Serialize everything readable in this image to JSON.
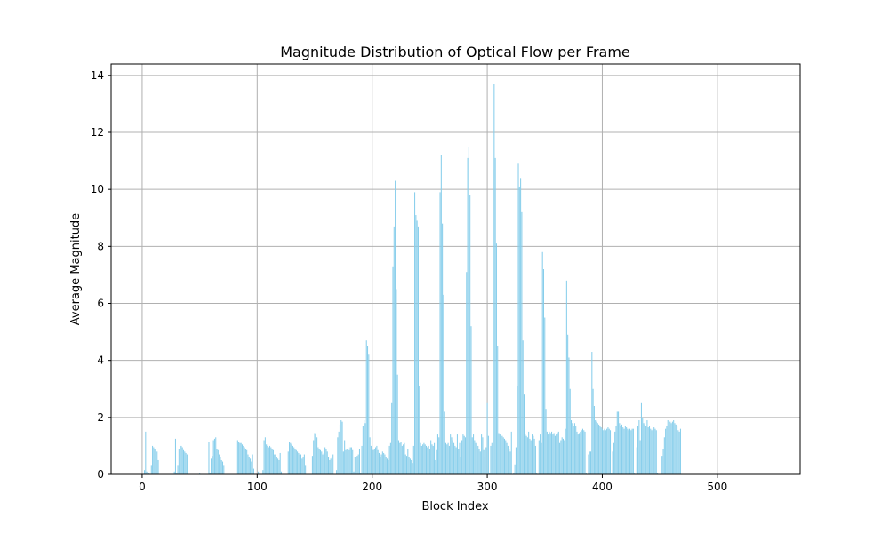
{
  "chart_data": {
    "type": "bar",
    "title": "Magnitude Distribution of Optical Flow per Frame",
    "xlabel": "Block Index",
    "ylabel": "Average Magnitude",
    "xlim": [
      -27,
      572
    ],
    "ylim": [
      0,
      14.4
    ],
    "xticks": [
      0,
      100,
      200,
      300,
      400,
      500
    ],
    "yticks": [
      0,
      2,
      4,
      6,
      8,
      10,
      12,
      14
    ],
    "grid": true,
    "legend": "none",
    "bar_color": "#87ceeb",
    "values": [
      0,
      0,
      0.15,
      1.5,
      0.1,
      0,
      0.05,
      0,
      0.3,
      1.0,
      0.95,
      0.9,
      0.85,
      0.8,
      0.5,
      0,
      0,
      0,
      0,
      0,
      0,
      0,
      0,
      0,
      0,
      0,
      0,
      0,
      0.1,
      1.25,
      0.05,
      0.3,
      0.9,
      1.0,
      1.0,
      0.95,
      0.85,
      0.8,
      0.75,
      0.7,
      0,
      0,
      0,
      0,
      0,
      0,
      0,
      0,
      0,
      0,
      0.05,
      0,
      0,
      0,
      0,
      0,
      0,
      0,
      1.15,
      0.05,
      0.55,
      0.65,
      1.2,
      1.25,
      1.3,
      0.9,
      0.85,
      0.7,
      0.6,
      0.5,
      0.45,
      0.3,
      0,
      0,
      0,
      0,
      0,
      0,
      0,
      0,
      0,
      0,
      0,
      1.2,
      1.15,
      1.1,
      1.1,
      1.05,
      1.0,
      0.95,
      0.9,
      0.85,
      0.7,
      0.6,
      0.55,
      0.45,
      0.7,
      0.2,
      0,
      0,
      0,
      0.1,
      0,
      0,
      0,
      0.15,
      1.2,
      1.3,
      1.05,
      1.0,
      0.95,
      1.0,
      0.95,
      0.9,
      0.85,
      0.7,
      0.7,
      0.6,
      0.55,
      0.5,
      0.75,
      0.1,
      0,
      0,
      0,
      0,
      0,
      0.8,
      1.15,
      1.1,
      1.05,
      1.0,
      0.95,
      0.9,
      0.85,
      0.8,
      0.75,
      0.7,
      0.7,
      0.55,
      0.6,
      0.7,
      0.3,
      0,
      0,
      0,
      0,
      0,
      0.65,
      1.2,
      1.45,
      1.4,
      1.3,
      0.95,
      0.9,
      0.85,
      0.8,
      0.7,
      0.75,
      0.95,
      0.9,
      0.8,
      0.6,
      0.5,
      0.55,
      0.6,
      0.7,
      0,
      0,
      0.15,
      1.3,
      1.5,
      1.75,
      1.9,
      1.85,
      0.8,
      1.2,
      0.85,
      0.9,
      0.95,
      0.85,
      0.95,
      0.95,
      0.85,
      0.1,
      0.6,
      0.6,
      0.65,
      0.7,
      0.9,
      0.05,
      1.0,
      1.7,
      1.9,
      1.8,
      4.7,
      4.5,
      4.2,
      1.3,
      1.0,
      0.9,
      0.85,
      0.9,
      0.95,
      1.0,
      0.85,
      0.75,
      0.6,
      0.7,
      0.8,
      0.75,
      0.7,
      0.6,
      0.55,
      0.5,
      1.0,
      1.1,
      2.5,
      7.3,
      8.7,
      10.3,
      6.5,
      3.5,
      1.2,
      1.1,
      1.15,
      1.0,
      1.05,
      1.1,
      0.7,
      0.65,
      0.9,
      0.6,
      0.55,
      0.5,
      0.4,
      1.0,
      9.9,
      9.1,
      8.9,
      8.7,
      3.1,
      1.1,
      1.0,
      1.05,
      1.1,
      1.05,
      1.0,
      0.95,
      1.0,
      0.9,
      1.2,
      1.05,
      1.0,
      1.1,
      0.5,
      0.85,
      1.4,
      1.3,
      9.9,
      11.2,
      8.8,
      6.3,
      2.2,
      1.1,
      1.05,
      1.1,
      1.0,
      1.4,
      1.3,
      1.2,
      1.1,
      1.0,
      0.95,
      1.4,
      0.9,
      1.1,
      0.6,
      1.2,
      1.4,
      1.35,
      1.3,
      7.1,
      11.1,
      11.5,
      9.8,
      5.2,
      1.3,
      1.4,
      1.2,
      1.1,
      1.05,
      1.0,
      0.9,
      0.8,
      1.4,
      1.3,
      0.85,
      0.6,
      0.95,
      2.5,
      1.35,
      0.05,
      1.0,
      1.1,
      10.7,
      13.7,
      11.1,
      8.1,
      4.5,
      1.45,
      1.4,
      1.35,
      1.35,
      1.3,
      1.25,
      1.2,
      1.1,
      1.0,
      0.9,
      0.8,
      1.5,
      0,
      0.05,
      0.35,
      0.95,
      3.1,
      10.9,
      10.1,
      10.4,
      9.2,
      4.7,
      2.8,
      1.4,
      1.35,
      1.3,
      1.5,
      1.25,
      1.2,
      1.4,
      1.35,
      1.25,
      1.0,
      0.05,
      0,
      1.2,
      1.4,
      1.1,
      7.8,
      7.2,
      5.5,
      2.3,
      1.5,
      1.4,
      1.5,
      1.45,
      1.5,
      1.4,
      1.45,
      1.35,
      1.4,
      1.45,
      1.5,
      1.1,
      1.2,
      1.3,
      1.25,
      1.2,
      1.6,
      6.8,
      4.9,
      4.1,
      3.0,
      1.9,
      1.8,
      1.7,
      1.8,
      1.7,
      1.5,
      1.4,
      1.45,
      1.5,
      1.55,
      1.6,
      1.55,
      1.5,
      0.05,
      0,
      0.7,
      0.8,
      0.8,
      4.3,
      3.0,
      2.4,
      1.9,
      1.85,
      1.8,
      1.75,
      1.7,
      1.65,
      1.6,
      1.55,
      1.6,
      1.55,
      1.6,
      1.65,
      1.6,
      1.55,
      0.05,
      0.8,
      1.1,
      1.5,
      1.7,
      2.2,
      2.2,
      1.8,
      1.7,
      1.75,
      1.65,
      1.6,
      1.7,
      1.65,
      1.6,
      1.55,
      1.6,
      1.55,
      1.6,
      1.6,
      0.05,
      0,
      0.95,
      1.7,
      1.9,
      1.2,
      2.5,
      2.0,
      1.8,
      1.75,
      1.7,
      1.9,
      1.65,
      1.7,
      1.6,
      1.55,
      1.6,
      1.65,
      1.6,
      1.55,
      0.05,
      0,
      0,
      0,
      0.65,
      0.9,
      1.3,
      1.6,
      1.7,
      1.9,
      1.75,
      1.85,
      1.8,
      1.85,
      1.9,
      1.8,
      1.75,
      1.7,
      1.55,
      1.5,
      1.6
    ]
  }
}
